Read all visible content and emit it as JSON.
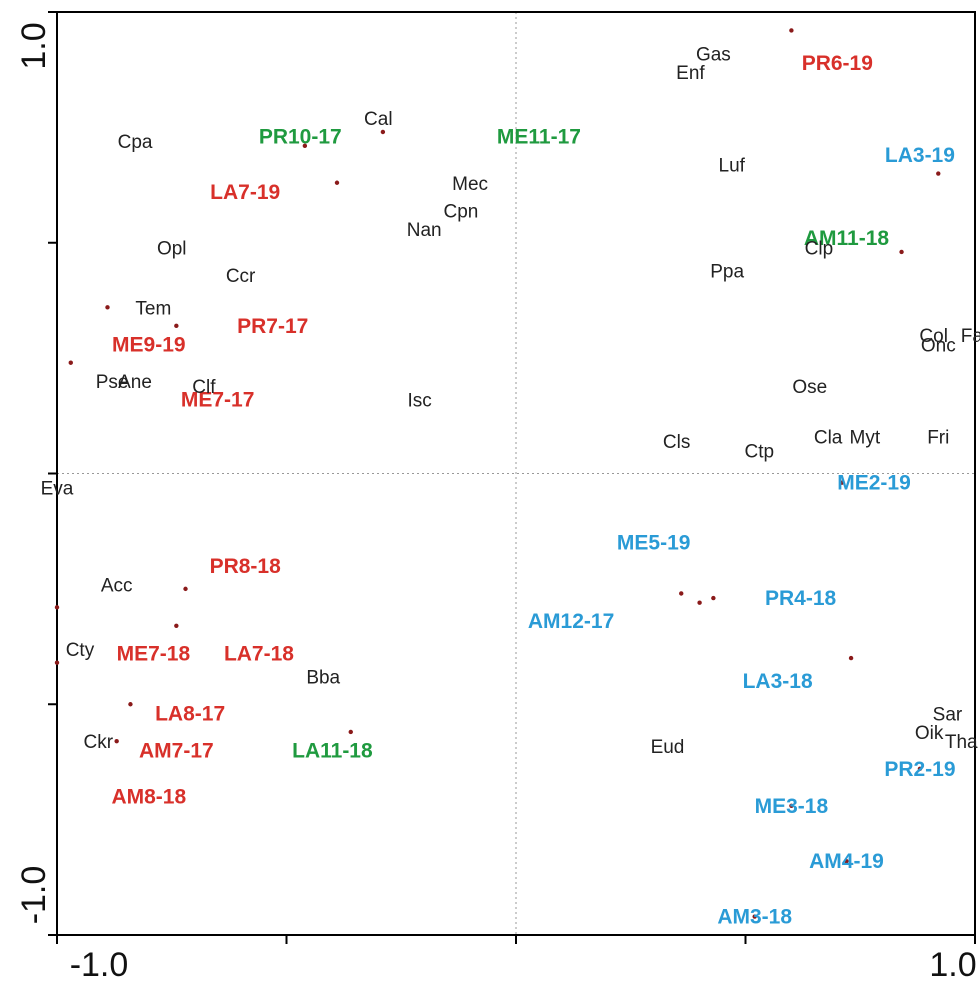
{
  "chart_data": {
    "type": "scatter",
    "title": "",
    "xlabel": "",
    "ylabel": "",
    "xlim": [
      -1.0,
      1.0
    ],
    "ylim": [
      -1.0,
      1.0
    ],
    "x_tick_labels": [
      "-1.0",
      "1.0"
    ],
    "y_tick_labels": [
      "1.0",
      "-1.0"
    ],
    "grid": false,
    "zero_lines": true,
    "colors": {
      "red": "#d8302a",
      "green": "#1f9a3f",
      "blue": "#2a9bd6",
      "species": "#222222",
      "point": "#8a1a1a",
      "axis": "#000000",
      "zero_line": "#999999"
    },
    "samples": [
      {
        "label": "PR6-19",
        "x": 0.6,
        "y": 0.96,
        "lx": 0.7,
        "ly": 0.89,
        "color": "red"
      },
      {
        "label": "LA7-19",
        "x": -0.39,
        "y": 0.63,
        "lx": -0.59,
        "ly": 0.61,
        "color": "red"
      },
      {
        "label": "ME9-19",
        "x": -0.74,
        "y": 0.32,
        "lx": -0.8,
        "ly": 0.28,
        "color": "red"
      },
      {
        "label": "PR7-17",
        "x": -0.89,
        "y": 0.36,
        "lx": -0.53,
        "ly": 0.32,
        "color": "red"
      },
      {
        "label": "ME7-17",
        "x": -0.97,
        "y": 0.24,
        "lx": -0.65,
        "ly": 0.16,
        "color": "red"
      },
      {
        "label": "PR8-18",
        "x": -0.72,
        "y": -0.25,
        "lx": -0.59,
        "ly": -0.2,
        "color": "red"
      },
      {
        "label": "ME7-18",
        "x": -1.0,
        "y": -0.29,
        "lx": -0.79,
        "ly": -0.39,
        "color": "red"
      },
      {
        "label": "LA7-18",
        "x": -0.74,
        "y": -0.33,
        "lx": -0.56,
        "ly": -0.39,
        "color": "red"
      },
      {
        "label": "LA8-17",
        "x": -1.0,
        "y": -0.41,
        "lx": -0.71,
        "ly": -0.52,
        "color": "red"
      },
      {
        "label": "AM7-17",
        "x": -0.84,
        "y": -0.5,
        "lx": -0.74,
        "ly": -0.6,
        "color": "red"
      },
      {
        "label": "AM8-18",
        "x": -0.87,
        "y": -0.58,
        "lx": -0.8,
        "ly": -0.7,
        "color": "red"
      },
      {
        "label": "PR10-17",
        "x": -0.46,
        "y": 0.71,
        "lx": -0.47,
        "ly": 0.73,
        "color": "green"
      },
      {
        "label": "ME11-17",
        "x": -0.29,
        "y": 0.74,
        "lx": 0.05,
        "ly": 0.73,
        "color": "green"
      },
      {
        "label": "AM11-18",
        "x": 0.84,
        "y": 0.48,
        "lx": 0.72,
        "ly": 0.51,
        "color": "green"
      },
      {
        "label": "LA11-18",
        "x": -0.36,
        "y": -0.56,
        "lx": -0.4,
        "ly": -0.6,
        "color": "green"
      },
      {
        "label": "LA3-19",
        "x": 0.92,
        "y": 0.65,
        "lx": 0.88,
        "ly": 0.69,
        "color": "blue"
      },
      {
        "label": "ME2-19",
        "x": 0.71,
        "y": -0.02,
        "lx": 0.78,
        "ly": -0.02,
        "color": "blue"
      },
      {
        "label": "ME5-19",
        "x": 0.36,
        "y": -0.26,
        "lx": 0.3,
        "ly": -0.15,
        "color": "blue"
      },
      {
        "label": "AM12-17",
        "x": 0.43,
        "y": -0.27,
        "lx": 0.12,
        "ly": -0.32,
        "color": "blue"
      },
      {
        "label": "PR4-18",
        "x": 0.4,
        "y": -0.28,
        "lx": 0.62,
        "ly": -0.27,
        "color": "blue"
      },
      {
        "label": "LA3-18",
        "x": 0.73,
        "y": -0.4,
        "lx": 0.57,
        "ly": -0.45,
        "color": "blue"
      },
      {
        "label": "PR2-19",
        "x": 0.88,
        "y": -0.64,
        "lx": 0.88,
        "ly": -0.64,
        "color": "blue"
      },
      {
        "label": "ME3-18",
        "x": 0.6,
        "y": -0.72,
        "lx": 0.6,
        "ly": -0.72,
        "color": "blue"
      },
      {
        "label": "AM4-19",
        "x": 0.72,
        "y": -0.84,
        "lx": 0.72,
        "ly": -0.84,
        "color": "blue"
      },
      {
        "label": "AM3-18",
        "x": 0.52,
        "y": -0.96,
        "lx": 0.52,
        "ly": -0.96,
        "color": "blue"
      }
    ],
    "species": [
      {
        "label": "Gas",
        "x": 0.43,
        "y": 0.91
      },
      {
        "label": "Enf",
        "x": 0.38,
        "y": 0.87
      },
      {
        "label": "Cal",
        "x": -0.3,
        "y": 0.77
      },
      {
        "label": "Cpa",
        "x": -0.83,
        "y": 0.72
      },
      {
        "label": "Luf",
        "x": 0.47,
        "y": 0.67
      },
      {
        "label": "Mec",
        "x": -0.1,
        "y": 0.63
      },
      {
        "label": "Cpn",
        "x": -0.12,
        "y": 0.57
      },
      {
        "label": "Nan",
        "x": -0.2,
        "y": 0.53
      },
      {
        "label": "Opl",
        "x": -0.75,
        "y": 0.49
      },
      {
        "label": "Clp",
        "x": 0.66,
        "y": 0.49
      },
      {
        "label": "Ppa",
        "x": 0.46,
        "y": 0.44
      },
      {
        "label": "Ccr",
        "x": -0.6,
        "y": 0.43
      },
      {
        "label": "Tem",
        "x": -0.79,
        "y": 0.36
      },
      {
        "label": "Col",
        "x": 0.91,
        "y": 0.3
      },
      {
        "label": "Far",
        "x": 1.0,
        "y": 0.3
      },
      {
        "label": "Onc",
        "x": 0.92,
        "y": 0.28
      },
      {
        "label": "Pse",
        "x": -0.88,
        "y": 0.2
      },
      {
        "label": "Ane",
        "x": -0.83,
        "y": 0.2
      },
      {
        "label": "Clf",
        "x": -0.68,
        "y": 0.19
      },
      {
        "label": "Ose",
        "x": 0.64,
        "y": 0.19
      },
      {
        "label": "Isc",
        "x": -0.21,
        "y": 0.16
      },
      {
        "label": "Cla",
        "x": 0.68,
        "y": 0.08
      },
      {
        "label": "Myt",
        "x": 0.76,
        "y": 0.08
      },
      {
        "label": "Fri",
        "x": 0.92,
        "y": 0.08
      },
      {
        "label": "Cls",
        "x": 0.35,
        "y": 0.07
      },
      {
        "label": "Ctp",
        "x": 0.53,
        "y": 0.05
      },
      {
        "label": "Eva",
        "x": -1.0,
        "y": -0.03
      },
      {
        "label": "Acc",
        "x": -0.87,
        "y": -0.24
      },
      {
        "label": "Cty",
        "x": -0.95,
        "y": -0.38
      },
      {
        "label": "Bba",
        "x": -0.42,
        "y": -0.44
      },
      {
        "label": "Sar",
        "x": 0.94,
        "y": -0.52
      },
      {
        "label": "Oik",
        "x": 0.9,
        "y": -0.56
      },
      {
        "label": "Ckr",
        "x": -0.91,
        "y": -0.58
      },
      {
        "label": "Eud",
        "x": 0.33,
        "y": -0.59
      },
      {
        "label": "Tha",
        "x": 0.97,
        "y": -0.58
      }
    ]
  }
}
